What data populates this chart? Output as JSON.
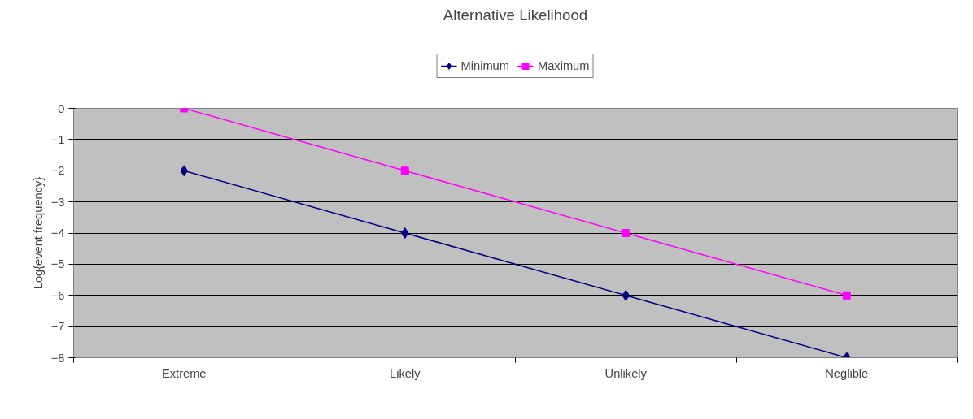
{
  "chart_data": {
    "type": "line",
    "title": "Alternative Likelihood",
    "ylabel": "Log{event frequency}",
    "categories": [
      "Extreme",
      "Likely",
      "Unlikely",
      "Neglible"
    ],
    "series": [
      {
        "name": "Minimum",
        "color": "#000080",
        "marker": "diamond",
        "values": [
          -2,
          -4,
          -6,
          -8
        ]
      },
      {
        "name": "Maximum",
        "color": "#ff00ff",
        "marker": "square",
        "values": [
          0,
          -2,
          -4,
          -6
        ]
      }
    ],
    "ylim": [
      -8,
      0
    ],
    "yticks": [
      -8,
      -7,
      -6,
      -5,
      -4,
      -3,
      -2,
      -1,
      0
    ],
    "grid": "y",
    "legend": "top"
  }
}
